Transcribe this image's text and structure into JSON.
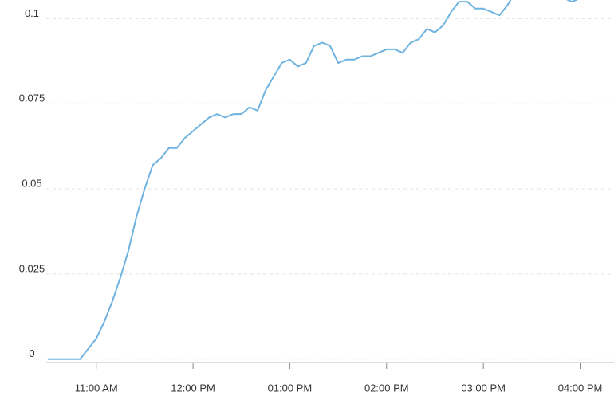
{
  "chart_data": {
    "type": "line",
    "x": [
      "10:30",
      "10:35",
      "10:40",
      "10:45",
      "10:50",
      "10:55",
      "11:00",
      "11:05",
      "11:10",
      "11:15",
      "11:20",
      "11:25",
      "11:30",
      "11:35",
      "11:40",
      "11:45",
      "11:50",
      "11:55",
      "12:00",
      "12:05",
      "12:10",
      "12:15",
      "12:20",
      "12:25",
      "12:30",
      "12:35",
      "12:40",
      "12:45",
      "12:50",
      "12:55",
      "13:00",
      "13:05",
      "13:10",
      "13:15",
      "13:20",
      "13:25",
      "13:30",
      "13:35",
      "13:40",
      "13:45",
      "13:50",
      "13:55",
      "14:00",
      "14:05",
      "14:10",
      "14:15",
      "14:20",
      "14:25",
      "14:30",
      "14:35",
      "14:40",
      "14:45",
      "14:50",
      "14:55",
      "15:00",
      "15:05",
      "15:10",
      "15:15",
      "15:20",
      "15:25",
      "15:30",
      "15:35",
      "15:40",
      "15:45",
      "15:50",
      "15:55",
      "16:00",
      "16:05"
    ],
    "series": [
      {
        "color": "#6fb3e0",
        "values": [
          0,
          0,
          0,
          0,
          0,
          0.003,
          0.006,
          0.011,
          0.017,
          0.024,
          0.032,
          0.042,
          0.05,
          0.057,
          0.059,
          0.062,
          0.062,
          0.065,
          0.067,
          0.069,
          0.071,
          0.072,
          0.071,
          0.072,
          0.072,
          0.074,
          0.073,
          0.079,
          0.083,
          0.087,
          0.088,
          0.086,
          0.087,
          0.092,
          0.093,
          0.092,
          0.087,
          0.088,
          0.088,
          0.089,
          0.089,
          0.09,
          0.091,
          0.091,
          0.09,
          0.093,
          0.094,
          0.097,
          0.096,
          0.098,
          0.102,
          0.105,
          0.105,
          0.103,
          0.103,
          0.102,
          0.101,
          0.104,
          0.108,
          0.11,
          0.108,
          0.106,
          0.106,
          0.106,
          0.106,
          0.105,
          0.106,
          0.106
        ]
      }
    ],
    "xlim": [
      "10:29",
      "16:21"
    ],
    "xticks": [
      {
        "value": "11:00",
        "label": "11:00 AM"
      },
      {
        "value": "12:00",
        "label": "12:00 PM"
      },
      {
        "value": "13:00",
        "label": "01:00 PM"
      },
      {
        "value": "14:00",
        "label": "02:00 PM"
      },
      {
        "value": "15:00",
        "label": "03:00 PM"
      },
      {
        "value": "16:00",
        "label": "04:00 PM"
      }
    ],
    "ylim": [
      -0.001,
      0.1055
    ],
    "yticks": [
      0,
      0.025,
      0.05,
      0.075,
      0.1
    ],
    "grid": true
  }
}
